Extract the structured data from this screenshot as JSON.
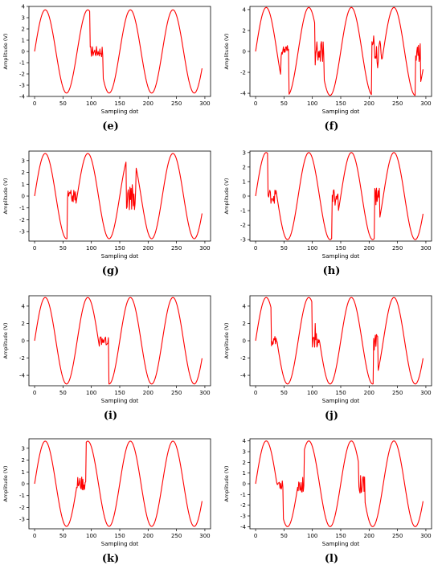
{
  "colors": {
    "line": "#ff0000",
    "axes": "#000000",
    "background": "#ffffff"
  },
  "chart_data": [
    {
      "type": "line",
      "label": "(e)",
      "xlabel": "Sampling dot",
      "ylabel": "Amplitude (V)",
      "xlim": [
        -10,
        310
      ],
      "ylim": [
        -4,
        4
      ],
      "xticks": [
        0,
        50,
        100,
        150,
        200,
        250,
        300
      ],
      "yticks": [
        -4,
        -3,
        -2,
        -1,
        0,
        1,
        2,
        3,
        4
      ],
      "series": [
        {
          "amplitude": 3.7,
          "period": 75,
          "disturbances": [
            {
              "start": 98,
              "end": 120,
              "level": 0.0,
              "spread": 0.5
            }
          ]
        }
      ]
    },
    {
      "type": "line",
      "label": "(f)",
      "xlabel": "Sampling dot",
      "ylabel": "Amplitude (V)",
      "xlim": [
        -10,
        310
      ],
      "ylim": [
        -4.3,
        4.3
      ],
      "xticks": [
        0,
        50,
        100,
        150,
        200,
        250,
        300
      ],
      "yticks": [
        -4,
        -2,
        0,
        2,
        4
      ],
      "series": [
        {
          "amplitude": 4.2,
          "period": 75,
          "disturbances": [
            {
              "start": 45,
              "end": 58,
              "level": 0.0,
              "spread": 0.6
            },
            {
              "start": 105,
              "end": 120,
              "level": 0.0,
              "spread": 1.0
            },
            {
              "start": 205,
              "end": 222,
              "level": 0.0,
              "spread": 1.0
            },
            {
              "start": 282,
              "end": 290,
              "level": 0.0,
              "spread": 1.0
            }
          ]
        }
      ]
    },
    {
      "type": "line",
      "label": "(g)",
      "xlabel": "Sampling dot",
      "ylabel": "Amplitude (V)",
      "xlim": [
        -10,
        310
      ],
      "ylim": [
        -3.8,
        3.8
      ],
      "xticks": [
        0,
        50,
        100,
        150,
        200,
        250,
        300
      ],
      "yticks": [
        -3,
        -2,
        -1,
        0,
        1,
        2,
        3
      ],
      "series": [
        {
          "amplitude": 3.6,
          "period": 75,
          "disturbances": [
            {
              "start": 58,
              "end": 72,
              "level": 0.0,
              "spread": 0.5
            },
            {
              "start": 162,
              "end": 178,
              "level": 0.0,
              "spread": 1.2
            }
          ]
        }
      ]
    },
    {
      "type": "line",
      "label": "(h)",
      "xlabel": "Sampling dot",
      "ylabel": "Amplitude (V)",
      "xlim": [
        -10,
        310
      ],
      "ylim": [
        -3.1,
        3.1
      ],
      "xticks": [
        0,
        50,
        100,
        150,
        200,
        250,
        300
      ],
      "yticks": [
        -3,
        -2,
        -1,
        0,
        1,
        2,
        3
      ],
      "series": [
        {
          "amplitude": 3.0,
          "period": 75,
          "disturbances": [
            {
              "start": 22,
              "end": 35,
              "level": 0.0,
              "spread": 0.5
            },
            {
              "start": 135,
              "end": 145,
              "level": 0.0,
              "spread": 0.8
            },
            {
              "start": 210,
              "end": 218,
              "level": 0.0,
              "spread": 0.8
            }
          ]
        }
      ]
    },
    {
      "type": "line",
      "label": "(i)",
      "xlabel": "Sampling dot",
      "ylabel": "Amplitude (V)",
      "xlim": [
        -10,
        310
      ],
      "ylim": [
        -5.2,
        5.2
      ],
      "xticks": [
        0,
        50,
        100,
        150,
        200,
        250,
        300
      ],
      "yticks": [
        -4,
        -2,
        0,
        2,
        4
      ],
      "series": [
        {
          "amplitude": 5.0,
          "period": 75,
          "disturbances": [
            {
              "start": 115,
              "end": 130,
              "level": 0.0,
              "spread": 0.5
            }
          ]
        }
      ]
    },
    {
      "type": "line",
      "label": "(j)",
      "xlabel": "Sampling dot",
      "ylabel": "Amplitude (V)",
      "xlim": [
        -10,
        310
      ],
      "ylim": [
        -5.2,
        5.2
      ],
      "xticks": [
        0,
        50,
        100,
        150,
        200,
        250,
        300
      ],
      "yticks": [
        -4,
        -2,
        0,
        2,
        4
      ],
      "series": [
        {
          "amplitude": 5.0,
          "period": 75,
          "disturbances": [
            {
              "start": 28,
              "end": 38,
              "level": 0.0,
              "spread": 0.6
            },
            {
              "start": 100,
              "end": 112,
              "level": 0.0,
              "spread": 0.8
            },
            {
              "start": 208,
              "end": 215,
              "level": 0.0,
              "spread": 0.8
            }
          ]
        }
      ]
    },
    {
      "type": "line",
      "label": "(k)",
      "xlabel": "Sampling dot",
      "ylabel": "Amplitude (V)",
      "xlim": [
        -10,
        310
      ],
      "ylim": [
        -3.8,
        3.8
      ],
      "xticks": [
        0,
        50,
        100,
        150,
        200,
        250,
        300
      ],
      "yticks": [
        -3,
        -2,
        -1,
        0,
        1,
        2,
        3
      ],
      "series": [
        {
          "amplitude": 3.6,
          "period": 75,
          "disturbances": [
            {
              "start": 75,
              "end": 90,
              "level": 0.0,
              "spread": 0.6
            }
          ]
        }
      ]
    },
    {
      "type": "line",
      "label": "(l)",
      "xlabel": "Sampling dot",
      "ylabel": "Amplitude (V)",
      "xlim": [
        -10,
        310
      ],
      "ylim": [
        -4.2,
        4.2
      ],
      "xticks": [
        0,
        50,
        100,
        150,
        200,
        250,
        300
      ],
      "yticks": [
        -4,
        -3,
        -2,
        -1,
        0,
        1,
        2,
        3,
        4
      ],
      "series": [
        {
          "amplitude": 4.0,
          "period": 75,
          "disturbances": [
            {
              "start": 38,
              "end": 48,
              "level": 0.0,
              "spread": 0.6
            },
            {
              "start": 75,
              "end": 85,
              "level": 0.0,
              "spread": 0.8
            },
            {
              "start": 182,
              "end": 192,
              "level": 0.0,
              "spread": 0.9
            }
          ]
        }
      ]
    }
  ]
}
